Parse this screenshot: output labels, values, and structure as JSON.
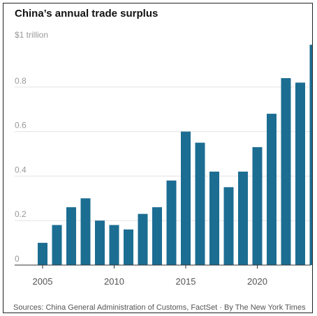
{
  "chart_data": {
    "type": "bar",
    "title": "China’s annual trade surplus",
    "unit_label": "$1 trillion",
    "x": [
      2005,
      2006,
      2007,
      2008,
      2009,
      2010,
      2011,
      2012,
      2013,
      2014,
      2015,
      2016,
      2017,
      2018,
      2019,
      2020,
      2021,
      2022,
      2023,
      2024
    ],
    "values": [
      0.1,
      0.18,
      0.26,
      0.3,
      0.2,
      0.18,
      0.16,
      0.23,
      0.26,
      0.38,
      0.6,
      0.55,
      0.42,
      0.35,
      0.42,
      0.53,
      0.68,
      0.84,
      0.82,
      0.99
    ],
    "ylim": [
      0,
      1
    ],
    "y_ticks": [
      {
        "value": 0,
        "label": "0"
      },
      {
        "value": 0.2,
        "label": "0.2"
      },
      {
        "value": 0.4,
        "label": "0.4"
      },
      {
        "value": 0.6,
        "label": "0.6"
      },
      {
        "value": 0.8,
        "label": "0.8"
      }
    ],
    "x_ticks": [
      {
        "value": 2005,
        "label": "2005"
      },
      {
        "value": 2010,
        "label": "2010"
      },
      {
        "value": 2015,
        "label": "2015"
      },
      {
        "value": 2020,
        "label": "2020"
      }
    ],
    "bar_color": "#1c6d92",
    "grid": true,
    "source": "Sources: China General Administration of Customs, FactSet · By The New York Times"
  }
}
